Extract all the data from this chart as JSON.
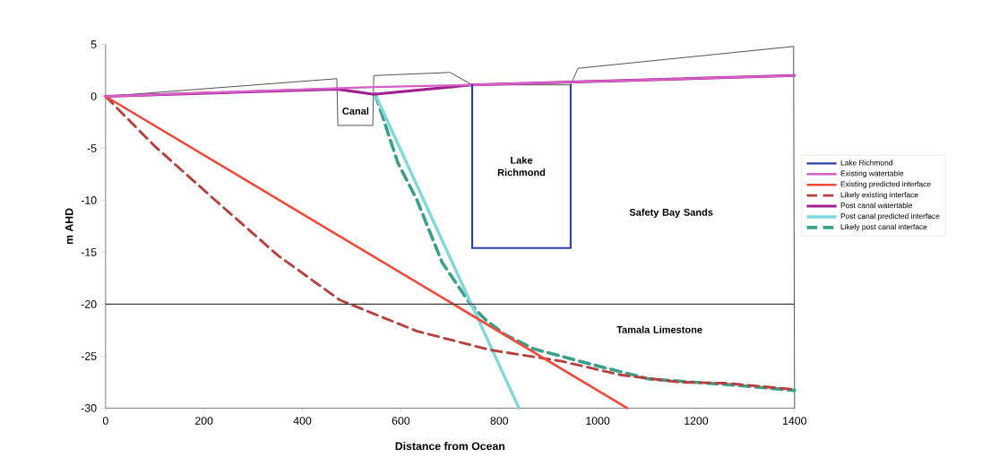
{
  "chart_data": {
    "type": "line",
    "xlabel": "Distance from Ocean",
    "ylabel": "m AHD",
    "xlim": [
      0,
      1400
    ],
    "ylim": [
      -30,
      5
    ],
    "xticks": [
      0,
      200,
      400,
      600,
      800,
      1000,
      1200,
      1400
    ],
    "yticks": [
      -30,
      -25,
      -20,
      -15,
      -10,
      -5,
      0,
      5
    ],
    "legend": "right",
    "series": [
      {
        "name": "Lake Richmond",
        "color": "#2b3fa8",
        "x": [
          745,
          745,
          945,
          945
        ],
        "values": [
          1.1,
          -14.6,
          -14.6,
          1.1
        ]
      },
      {
        "name": "Existing watertable",
        "color": "#d65fc8",
        "x": [
          0,
          545,
          745,
          1400
        ],
        "values": [
          0,
          0.9,
          1.1,
          2
        ]
      },
      {
        "name": "Existing predicted interface",
        "color": "#f04a3a",
        "x": [
          0,
          1060
        ],
        "values": [
          0,
          -30
        ]
      },
      {
        "name": "Likely existing interface",
        "color": "#b5413f",
        "line_style": "dashed",
        "x": [
          0,
          100,
          223,
          350,
          476,
          633,
          781,
          928,
          1046,
          1165,
          1260,
          1400
        ],
        "values": [
          0,
          -4.8,
          -10,
          -15.3,
          -19.6,
          -22.6,
          -24.4,
          -25.5,
          -26.8,
          -27.5,
          -27.6,
          -28.2
        ]
      },
      {
        "name": "Post canal watertable",
        "color": "#a0208f",
        "x": [
          0,
          470,
          545,
          745,
          1400
        ],
        "values": [
          0,
          0.7,
          0.2,
          1.1,
          2
        ]
      },
      {
        "name": "Post canal predicted interface",
        "color": "#7fd8dc",
        "x": [
          548,
          840
        ],
        "values": [
          0.2,
          -30
        ]
      },
      {
        "name": "Likely post canal interface",
        "color": "#3aa08a",
        "line_style": "dashed",
        "x": [
          548,
          594,
          633,
          684,
          740,
          772,
          811,
          870,
          988,
          1105,
          1282,
          1400
        ],
        "values": [
          0.2,
          -6.4,
          -10,
          -16,
          -19.9,
          -21.5,
          -22.9,
          -24.3,
          -25.8,
          -27.2,
          -27.8,
          -28.3
        ]
      },
      {
        "color": "#222222",
        "x": [
          0,
          470,
          472,
          543,
          545,
          700,
          745,
          945,
          960,
          1398,
          1400
        ],
        "values": [
          0,
          1.7,
          -2.8,
          -2.8,
          2,
          2.3,
          1.1,
          1.1,
          2.7,
          4.8,
          -30
        ]
      }
    ],
    "ref_lines": [
      {
        "axis": "y",
        "value": -20,
        "color": "#3a3a3a"
      }
    ],
    "annotations": [
      "Canal",
      "Lake Richmond",
      "Safety Bay Sands",
      "Tamala Limestone"
    ]
  }
}
